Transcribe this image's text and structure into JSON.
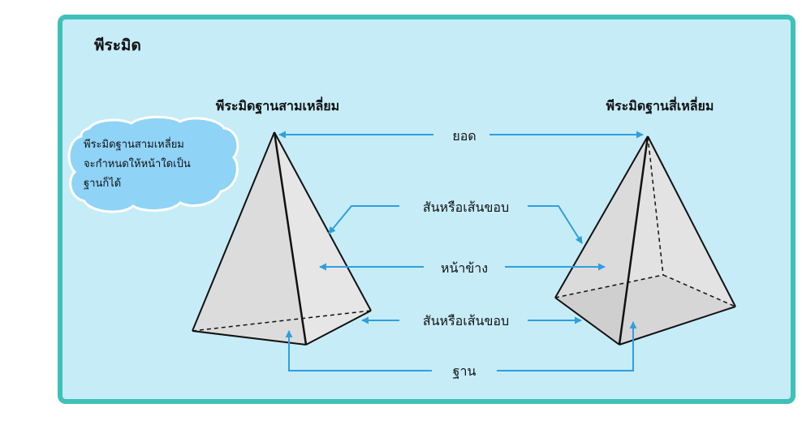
{
  "title": "พีระมิด",
  "left_heading": "พีระมิดฐานสามเหลี่ยม",
  "right_heading": "พีระมิดฐานสี่เหลี่ยม",
  "note_lines": [
    "พีระมิดฐานสามเหลี่ยม",
    "จะกำหนดให้หน้าใดเป็น",
    "ฐานก็ได้"
  ],
  "labels": {
    "apex": "ยอด",
    "edge_top": "สันหรือเส้นขอบ",
    "lateral_face": "หน้าข้าง",
    "edge_bottom": "สันหรือเส้นขอบ",
    "base": "ฐาน"
  },
  "colors": {
    "frame_border": "#3fc1ba",
    "background": "#c6ecf8",
    "arrow": "#2e9fe0",
    "cloud_fill": "#8fd3f7",
    "face_light": "#e4e4e4",
    "face_mid": "#cfcfcf",
    "base_dark": "#7f7f7f"
  }
}
